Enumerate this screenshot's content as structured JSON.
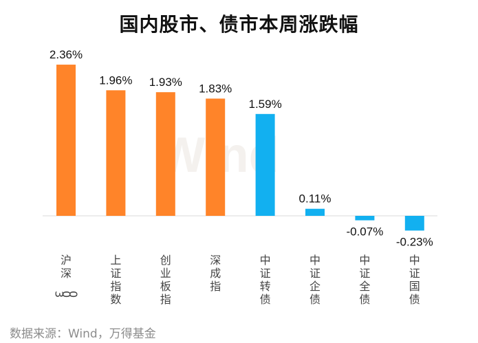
{
  "chart_data": {
    "type": "bar",
    "title": "国内股市、债市本周涨跌幅",
    "categories": [
      "沪深300",
      "上证指数",
      "创业板指",
      "深成指",
      "中证转债",
      "中证企债",
      "中证全债",
      "中证国债"
    ],
    "values": [
      2.36,
      1.96,
      1.93,
      1.83,
      1.59,
      0.11,
      -0.07,
      -0.23
    ],
    "value_labels": [
      "2.36%",
      "1.96%",
      "1.93%",
      "1.83%",
      "1.59%",
      "0.11%",
      "-0.07%",
      "-0.23%"
    ],
    "bar_groups": [
      "stock",
      "stock",
      "stock",
      "stock",
      "bond",
      "bond",
      "bond",
      "bond"
    ],
    "colors": {
      "stock": "#FF8429",
      "bond": "#12B0F0",
      "axis": "#d9d9d9"
    },
    "ylim": [
      -0.3,
      2.5
    ],
    "grid": false,
    "legend": "none",
    "watermark": "Wind",
    "source": "数据来源：Wind，万得基金"
  }
}
